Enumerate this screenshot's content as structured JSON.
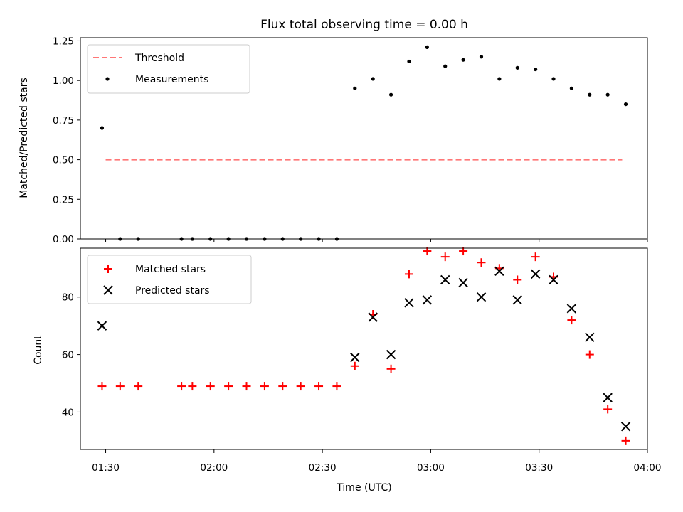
{
  "title": "Flux total observing time = 0.00 h",
  "chart_data": [
    {
      "type": "scatter",
      "ylabel": "Matched/Predicted stars",
      "ylim": [
        0,
        1.27
      ],
      "yticks": [
        "0.00",
        "0.25",
        "0.50",
        "0.75",
        "1.00",
        "1.25"
      ],
      "xlim": [
        "01:23",
        "04:00"
      ],
      "grid": false,
      "legend_position": "top-left",
      "series": [
        {
          "name": "Threshold",
          "style": "dashed-line",
          "color": "#ff7777",
          "x": [
            "01:30",
            "03:53"
          ],
          "values": [
            0.5,
            0.5
          ]
        },
        {
          "name": "Measurements",
          "style": "dot",
          "color": "#000000",
          "x": [
            "01:29",
            "01:34",
            "01:39",
            "01:51",
            "01:54",
            "01:59",
            "02:04",
            "02:09",
            "02:14",
            "02:19",
            "02:24",
            "02:29",
            "02:34",
            "02:39",
            "02:44",
            "02:49",
            "02:54",
            "02:59",
            "03:04",
            "03:09",
            "03:14",
            "03:19",
            "03:24",
            "03:29",
            "03:34",
            "03:39",
            "03:44",
            "03:49",
            "03:54"
          ],
          "values": [
            0.7,
            0,
            0,
            0,
            0,
            0,
            0,
            0,
            0,
            0,
            0,
            0,
            0,
            0.95,
            1.01,
            0.91,
            1.12,
            1.21,
            1.09,
            1.13,
            1.15,
            1.01,
            1.08,
            1.07,
            1.01,
            0.95,
            0.91,
            0.91,
            0.85
          ]
        }
      ]
    },
    {
      "type": "scatter",
      "xlabel": "Time (UTC)",
      "ylabel": "Count",
      "ylim": [
        27,
        97
      ],
      "yticks": [
        "40",
        "60",
        "80"
      ],
      "xticks": [
        "01:30",
        "02:00",
        "02:30",
        "03:00",
        "03:30",
        "04:00"
      ],
      "xlim": [
        "01:23",
        "04:00"
      ],
      "grid": false,
      "legend_position": "top-left",
      "series": [
        {
          "name": "Matched stars",
          "style": "plus",
          "color": "#ff0000",
          "x": [
            "01:29",
            "01:34",
            "01:39",
            "01:51",
            "01:54",
            "01:59",
            "02:04",
            "02:09",
            "02:14",
            "02:19",
            "02:24",
            "02:29",
            "02:34",
            "02:39",
            "02:44",
            "02:49",
            "02:54",
            "02:59",
            "03:04",
            "03:09",
            "03:14",
            "03:19",
            "03:24",
            "03:29",
            "03:34",
            "03:39",
            "03:44",
            "03:49",
            "03:54"
          ],
          "values": [
            49,
            49,
            49,
            49,
            49,
            49,
            49,
            49,
            49,
            49,
            49,
            49,
            49,
            56,
            74,
            55,
            88,
            96,
            94,
            96,
            92,
            90,
            86,
            94,
            87,
            72,
            60,
            41,
            30
          ]
        },
        {
          "name": "Predicted stars",
          "style": "x",
          "color": "#000000",
          "x": [
            "01:29",
            "02:39",
            "02:44",
            "02:49",
            "02:54",
            "02:59",
            "03:04",
            "03:09",
            "03:14",
            "03:19",
            "03:24",
            "03:29",
            "03:34",
            "03:39",
            "03:44",
            "03:49",
            "03:54"
          ],
          "values": [
            70,
            59,
            73,
            60,
            78,
            79,
            86,
            85,
            80,
            89,
            79,
            88,
            86,
            76,
            66,
            45,
            35
          ]
        }
      ]
    }
  ]
}
